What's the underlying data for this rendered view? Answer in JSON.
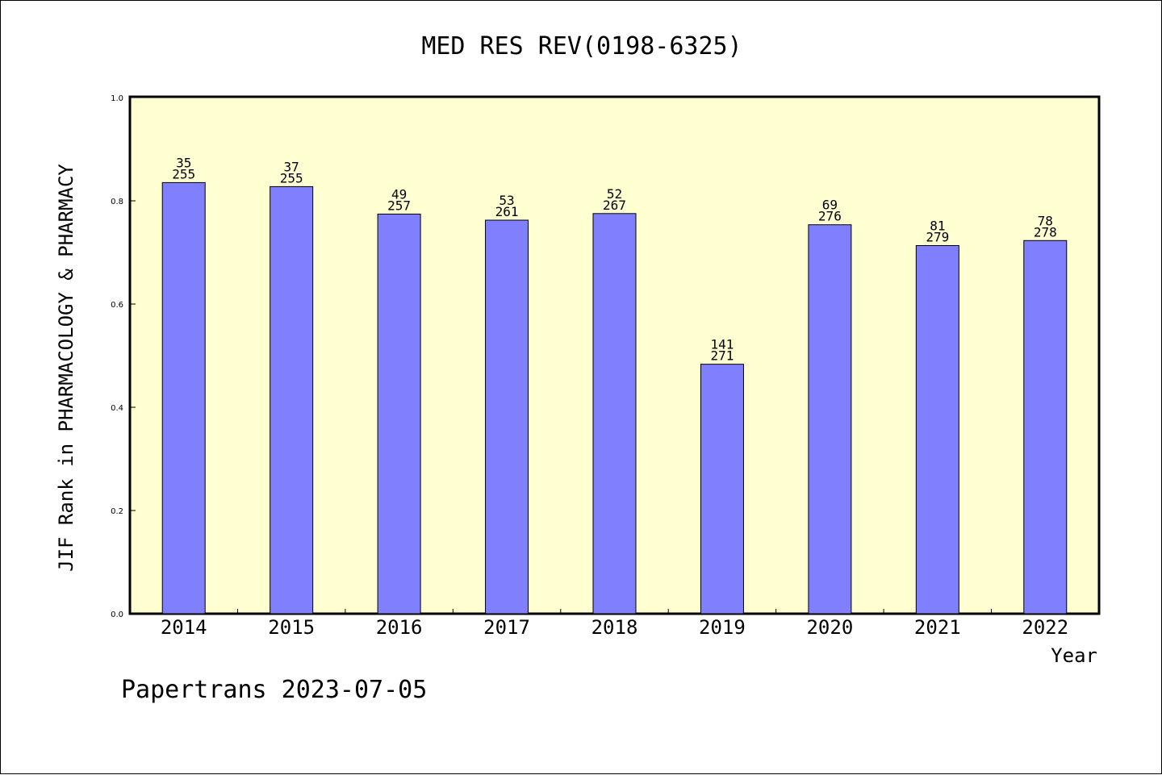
{
  "chart_data": {
    "type": "bar",
    "title": "MED RES REV(0198-6325)",
    "xlabel": "Year",
    "ylabel": "JIF Rank in PHARMACOLOGY & PHARMACY",
    "ylim": [
      0,
      1.0
    ],
    "yticks": [
      "0.0",
      "0.2",
      "0.4",
      "0.6",
      "0.8",
      "1.0"
    ],
    "categories": [
      "2014",
      "2015",
      "2016",
      "2017",
      "2018",
      "2019",
      "2020",
      "2021",
      "2022"
    ],
    "values": [
      0.8353,
      0.8275,
      0.7743,
      0.7625,
      0.7753,
      0.4834,
      0.7536,
      0.7133,
      0.723
    ],
    "ranks": [
      "35",
      "37",
      "49",
      "53",
      "52",
      "141",
      "69",
      "81",
      "78"
    ],
    "totals": [
      "255",
      "255",
      "257",
      "261",
      "267",
      "271",
      "276",
      "279",
      "278"
    ],
    "grid": false,
    "colors": {
      "plot_bg": "#ffffd2",
      "bar": "#8080ff",
      "bar_edge": "#000000"
    }
  },
  "footer": {
    "text": "Papertrans 2023-07-05"
  }
}
